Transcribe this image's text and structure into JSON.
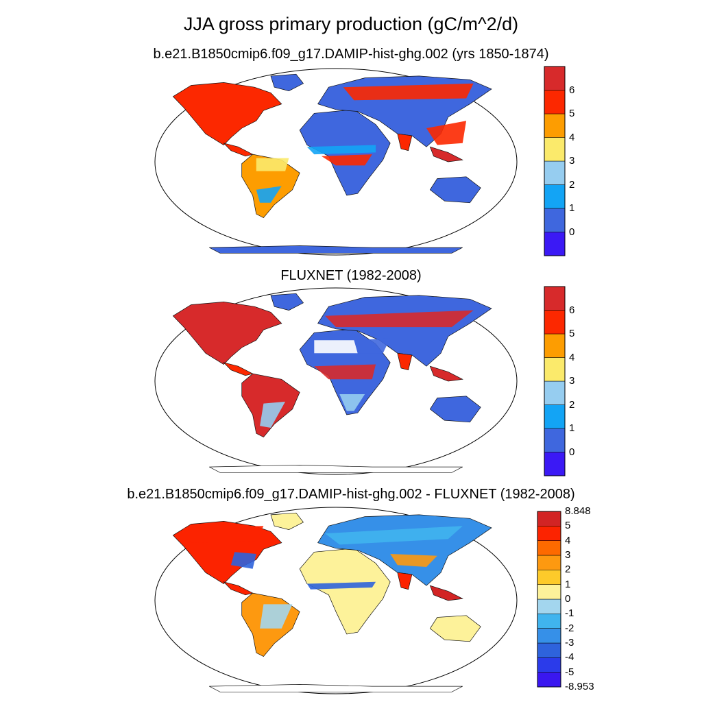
{
  "title": "JJA gross primary production (gC/m^2/d)",
  "panels": [
    {
      "id": "model",
      "title": "b.e21.B1850cmip6.f09_g17.DAMIP-hist-ghg.002 (yrs 1850-1874)",
      "colorbar": {
        "colors": [
          "#3b19f5",
          "#3f67de",
          "#13a4f5",
          "#96cdf0",
          "#fbea6b",
          "#fd9d01",
          "#fc2800",
          "#d72a2b"
        ],
        "labels": [
          "0",
          "1",
          "2",
          "3",
          "4",
          "5",
          "6"
        ]
      },
      "palette": {
        "base": "#3f67de",
        "mid": "#13a4f5",
        "light": "#96cdf0",
        "yellow": "#fbea6b",
        "orange": "#fd9d01",
        "red": "#fc2800",
        "dark": "#d72a2b"
      }
    },
    {
      "id": "obs",
      "title": "FLUXNET (1982-2008)",
      "colorbar": {
        "colors": [
          "#3b19f5",
          "#3f67de",
          "#13a4f5",
          "#96cdf0",
          "#fbea6b",
          "#fd9d01",
          "#fc2800",
          "#d72a2b"
        ],
        "labels": [
          "0",
          "1",
          "2",
          "3",
          "4",
          "5",
          "6"
        ]
      },
      "palette": {
        "base": "#3f67de",
        "mid": "#13a4f5",
        "light": "#96cdf0",
        "yellow": "#fbea6b",
        "orange": "#fd9d01",
        "red": "#fc2800",
        "dark": "#d72a2b"
      }
    },
    {
      "id": "diff",
      "title": "b.e21.B1850cmip6.f09_g17.DAMIP-hist-ghg.002 - FLUXNET (1982-2008)",
      "colorbar": {
        "colors": [
          "#3a17f0",
          "#2b3bea",
          "#2e63dc",
          "#3690e8",
          "#40b4ee",
          "#a3d6ee",
          "#fdf29a",
          "#fdca2a",
          "#fd9910",
          "#fd6a00",
          "#fc2300",
          "#d22424"
        ],
        "labels": [
          "8.848",
          "5",
          "4",
          "3",
          "2",
          "1",
          "0",
          "-1",
          "-2",
          "-3",
          "-4",
          "-5",
          "-8.953"
        ]
      },
      "palette": {
        "base": "#fdf29a",
        "mid": "#a3d6ee",
        "light": "#3690e8",
        "yellow": "#2e63dc",
        "orange": "#fd9910",
        "red": "#fc2300",
        "dark": "#d22424"
      }
    }
  ]
}
